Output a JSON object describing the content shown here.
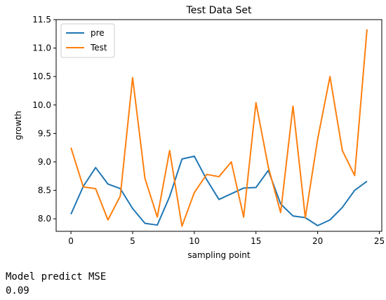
{
  "chart_data": {
    "type": "line",
    "title": "Test Data Set",
    "xlabel": "sampling point",
    "ylabel": "growth",
    "xlim": [
      -1.2,
      25.2
    ],
    "ylim": [
      7.78,
      11.5
    ],
    "xticks": [
      0,
      5,
      10,
      15,
      20,
      25
    ],
    "yticks": [
      8.0,
      8.5,
      9.0,
      9.5,
      10.0,
      10.5,
      11.0,
      11.5
    ],
    "ytick_labels": [
      "8.0",
      "8.5",
      "9.0",
      "9.5",
      "10.0",
      "10.5",
      "11.0",
      "11.5"
    ],
    "grid": false,
    "legend_position": "top-left",
    "x": [
      0,
      1,
      2,
      3,
      4,
      5,
      6,
      7,
      8,
      9,
      10,
      11,
      12,
      13,
      14,
      15,
      16,
      17,
      18,
      19,
      20,
      21,
      22,
      23,
      24
    ],
    "series": [
      {
        "name": "pre",
        "color": "#1f77b4",
        "values": [
          8.08,
          8.57,
          8.9,
          8.61,
          8.53,
          8.18,
          7.92,
          7.89,
          8.39,
          9.05,
          9.1,
          8.69,
          8.34,
          8.44,
          8.54,
          8.55,
          8.85,
          8.26,
          8.05,
          8.02,
          7.88,
          7.98,
          8.2,
          8.5,
          8.66
        ]
      },
      {
        "name": "Test",
        "color": "#ff7f0e",
        "values": [
          9.25,
          8.56,
          8.53,
          7.98,
          8.4,
          10.48,
          8.71,
          8.03,
          9.2,
          7.87,
          8.46,
          8.78,
          8.74,
          9.0,
          8.03,
          10.04,
          8.91,
          8.11,
          9.98,
          8.02,
          9.4,
          10.5,
          9.2,
          8.76,
          11.33
        ]
      }
    ]
  },
  "output": {
    "label": "Model predict MSE",
    "value": "0.09"
  }
}
